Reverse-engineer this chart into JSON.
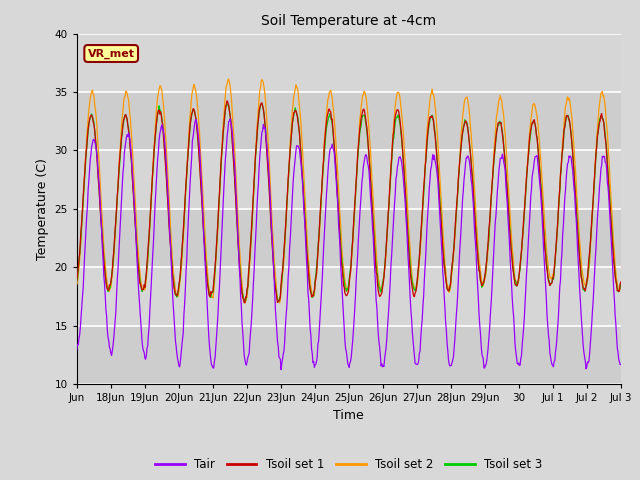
{
  "title": "Soil Temperature at -4cm",
  "xlabel": "Time",
  "ylabel": "Temperature (C)",
  "ylim": [
    10,
    40
  ],
  "yticks": [
    10,
    15,
    20,
    25,
    30,
    35,
    40
  ],
  "background_color": "#d8d8d8",
  "plot_bg_color": "#d8d8d8",
  "grid_color": "#ffffff",
  "annotation_text": "VR_met",
  "annotation_box_color": "#ffff99",
  "annotation_box_edge": "#8B0000",
  "annotation_text_color": "#8B0000",
  "colors": {
    "Tair": "#9900ff",
    "Tsoil1": "#cc0000",
    "Tsoil2": "#ff9900",
    "Tsoil3": "#00cc00"
  },
  "legend_labels": [
    "Tair",
    "Tsoil set 1",
    "Tsoil set 2",
    "Tsoil set 3"
  ],
  "xtick_labels": [
    "Jun",
    "18Jun",
    "19Jun",
    "20Jun",
    "21Jun",
    "22Jun",
    "23Jun",
    "24Jun",
    "25Jun",
    "26Jun",
    "27Jun",
    "28Jun",
    "29Jun",
    "30",
    "Jul 1",
    "Jul 2",
    "Jul 3"
  ],
  "n_points": 768,
  "start_day": 0,
  "end_day": 16
}
